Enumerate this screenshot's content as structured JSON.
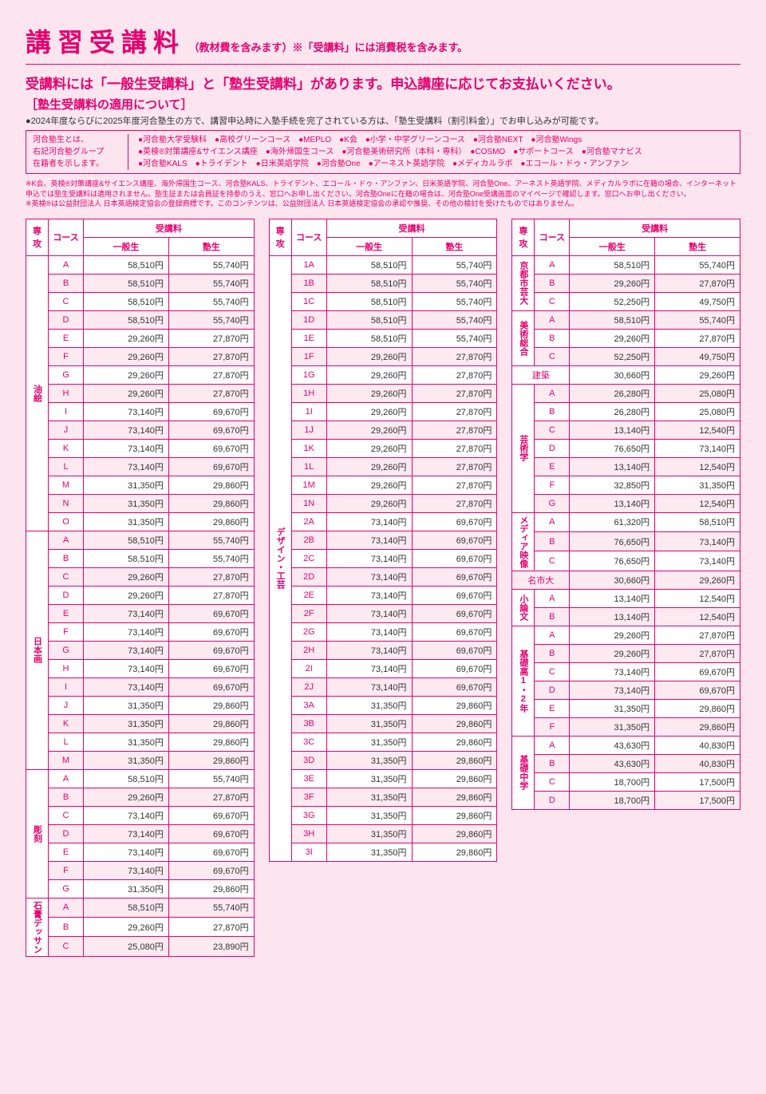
{
  "header": {
    "title": "講習受講料",
    "subtitle": "（教材費を含みます）※「受講料」には消費税を含みます。"
  },
  "intro": {
    "line1": "受講料には「一般生受講料」と「塾生受講料」があります。申込講座に応じてお支払いください。",
    "line2": "［塾生受講料の適用について］",
    "note": "●2024年度ならびに2025年度河合塾生の方で、講習申込時に入塾手続を完了されている方は、「塾生受講料（割引料金）」でお申し込みが可能です。"
  },
  "infoBox": {
    "left": "河合塾生とは、\n右記河合塾グループ\n在籍者を示します。",
    "right1": "●河合塾大学受験科　●高校グリーンコース　●MEPLO　●K会　●小学・中学グリーンコース　●河合塾NEXT　●河合塾Wings",
    "right2": "●英検®対策講座&サイエンス講座　●海外帰国生コース　●河合塾美術研究所（本科・専科）　●COSMO　●サポートコース　●河合塾マナビス",
    "right3": "●河合塾KALS　●トライデント　●日米英語学院　●河合塾One　●アーネスト英語学院　●メディカルラボ　●エコール・ドゥ・アンファン"
  },
  "finePrint": "※K会、英検®対策講座&サイエンス講座、海外帰国生コース、河合塾KALS、トライデント、エコール・ドゥ・アンファン、日米英語学院、河合塾One、アーネスト英語学院、メディカルラボに在籍の場合、インターネット申込では塾生受講料は適用されません。塾生証または会員証を持参のうえ、窓口へお申し出ください。河合塾Oneに在籍の場合は、河合塾One受講画面のマイページで確認します。窓口へお申し出ください。\n※英検®は公益財団法人 日本英語検定協会の登録商標です。このコンテンツは、公益財団法人 日本英語検定協会の承認や推奨、その他の検討を受けたものではありません。",
  "tableHead": {
    "major": "専攻",
    "course": "コース",
    "fee": "受講料",
    "gen": "一般生",
    "stu": "塾生"
  },
  "col1": [
    {
      "major": "油絵",
      "rows": [
        [
          "A",
          "58,510円",
          "55,740円",
          0
        ],
        [
          "B",
          "58,510円",
          "55,740円",
          1
        ],
        [
          "C",
          "58,510円",
          "55,740円",
          0
        ],
        [
          "D",
          "58,510円",
          "55,740円",
          1
        ],
        [
          "E",
          "29,260円",
          "27,870円",
          0
        ],
        [
          "F",
          "29,260円",
          "27,870円",
          1
        ],
        [
          "G",
          "29,260円",
          "27,870円",
          0
        ],
        [
          "H",
          "29,260円",
          "27,870円",
          1
        ],
        [
          "I",
          "73,140円",
          "69,670円",
          0
        ],
        [
          "J",
          "73,140円",
          "69,670円",
          1
        ],
        [
          "K",
          "73,140円",
          "69,670円",
          0
        ],
        [
          "L",
          "73,140円",
          "69,670円",
          1
        ],
        [
          "M",
          "31,350円",
          "29,860円",
          0
        ],
        [
          "N",
          "31,350円",
          "29,860円",
          1
        ],
        [
          "O",
          "31,350円",
          "29,860円",
          0
        ]
      ]
    },
    {
      "major": "日本画",
      "rows": [
        [
          "A",
          "58,510円",
          "55,740円",
          1
        ],
        [
          "B",
          "58,510円",
          "55,740円",
          0
        ],
        [
          "C",
          "29,260円",
          "27,870円",
          1
        ],
        [
          "D",
          "29,260円",
          "27,870円",
          0
        ],
        [
          "E",
          "73,140円",
          "69,670円",
          1
        ],
        [
          "F",
          "73,140円",
          "69,670円",
          0
        ],
        [
          "G",
          "73,140円",
          "69,670円",
          1
        ],
        [
          "H",
          "73,140円",
          "69,670円",
          0
        ],
        [
          "I",
          "73,140円",
          "69,670円",
          1
        ],
        [
          "J",
          "31,350円",
          "29,860円",
          0
        ],
        [
          "K",
          "31,350円",
          "29,860円",
          1
        ],
        [
          "L",
          "31,350円",
          "29,860円",
          0
        ],
        [
          "M",
          "31,350円",
          "29,860円",
          1
        ]
      ]
    },
    {
      "major": "彫刻",
      "rows": [
        [
          "A",
          "58,510円",
          "55,740円",
          0
        ],
        [
          "B",
          "29,260円",
          "27,870円",
          1
        ],
        [
          "C",
          "73,140円",
          "69,670円",
          0
        ],
        [
          "D",
          "73,140円",
          "69,670円",
          1
        ],
        [
          "E",
          "73,140円",
          "69,670円",
          0
        ],
        [
          "F",
          "73,140円",
          "69,670円",
          1
        ],
        [
          "G",
          "31,350円",
          "29,860円",
          0
        ]
      ]
    },
    {
      "major": "石膏デッサン",
      "rows": [
        [
          "A",
          "58,510円",
          "55,740円",
          1
        ],
        [
          "B",
          "29,260円",
          "27,870円",
          0
        ],
        [
          "C",
          "25,080円",
          "23,890円",
          1
        ]
      ]
    }
  ],
  "col2": [
    {
      "major": "デザイン・工芸",
      "rows": [
        [
          "1A",
          "58,510円",
          "55,740円",
          0
        ],
        [
          "1B",
          "58,510円",
          "55,740円",
          1
        ],
        [
          "1C",
          "58,510円",
          "55,740円",
          0
        ],
        [
          "1D",
          "58,510円",
          "55,740円",
          1
        ],
        [
          "1E",
          "58,510円",
          "55,740円",
          0
        ],
        [
          "1F",
          "29,260円",
          "27,870円",
          1
        ],
        [
          "1G",
          "29,260円",
          "27,870円",
          0
        ],
        [
          "1H",
          "29,260円",
          "27,870円",
          1
        ],
        [
          "1I",
          "29,260円",
          "27,870円",
          0
        ],
        [
          "1J",
          "29,260円",
          "27,870円",
          1
        ],
        [
          "1K",
          "29,260円",
          "27,870円",
          0
        ],
        [
          "1L",
          "29,260円",
          "27,870円",
          1
        ],
        [
          "1M",
          "29,260円",
          "27,870円",
          0
        ],
        [
          "1N",
          "29,260円",
          "27,870円",
          1
        ],
        [
          "2A",
          "73,140円",
          "69,670円",
          0
        ],
        [
          "2B",
          "73,140円",
          "69,670円",
          1
        ],
        [
          "2C",
          "73,140円",
          "69,670円",
          0
        ],
        [
          "2D",
          "73,140円",
          "69,670円",
          1
        ],
        [
          "2E",
          "73,140円",
          "69,670円",
          0
        ],
        [
          "2F",
          "73,140円",
          "69,670円",
          1
        ],
        [
          "2G",
          "73,140円",
          "69,670円",
          0
        ],
        [
          "2H",
          "73,140円",
          "69,670円",
          1
        ],
        [
          "2I",
          "73,140円",
          "69,670円",
          0
        ],
        [
          "2J",
          "73,140円",
          "69,670円",
          1
        ],
        [
          "3A",
          "31,350円",
          "29,860円",
          0
        ],
        [
          "3B",
          "31,350円",
          "29,860円",
          1
        ],
        [
          "3C",
          "31,350円",
          "29,860円",
          0
        ],
        [
          "3D",
          "31,350円",
          "29,860円",
          1
        ],
        [
          "3E",
          "31,350円",
          "29,860円",
          0
        ],
        [
          "3F",
          "31,350円",
          "29,860円",
          1
        ],
        [
          "3G",
          "31,350円",
          "29,860円",
          0
        ],
        [
          "3H",
          "31,350円",
          "29,860円",
          1
        ],
        [
          "3I",
          "31,350円",
          "29,860円",
          0
        ]
      ]
    }
  ],
  "col3": [
    {
      "major": "京都市芸大",
      "rows": [
        [
          "A",
          "58,510円",
          "55,740円",
          0
        ],
        [
          "B",
          "29,260円",
          "27,870円",
          1
        ],
        [
          "C",
          "52,250円",
          "49,750円",
          0
        ]
      ]
    },
    {
      "major": "美術総合",
      "rows": [
        [
          "A",
          "58,510円",
          "55,740円",
          1
        ],
        [
          "B",
          "29,260円",
          "27,870円",
          0
        ],
        [
          "C",
          "52,250円",
          "49,750円",
          1
        ]
      ]
    },
    {
      "major": "建築",
      "span": true,
      "rows": [
        [
          "",
          "30,660円",
          "29,260円",
          0
        ]
      ]
    },
    {
      "major": "芸術学",
      "rows": [
        [
          "A",
          "26,280円",
          "25,080円",
          1
        ],
        [
          "B",
          "26,280円",
          "25,080円",
          0
        ],
        [
          "C",
          "13,140円",
          "12,540円",
          1
        ],
        [
          "D",
          "76,650円",
          "73,140円",
          0
        ],
        [
          "E",
          "13,140円",
          "12,540円",
          1
        ],
        [
          "F",
          "32,850円",
          "31,350円",
          0
        ],
        [
          "G",
          "13,140円",
          "12,540円",
          1
        ]
      ]
    },
    {
      "major": "メディア映像",
      "rows": [
        [
          "A",
          "61,320円",
          "58,510円",
          0
        ],
        [
          "B",
          "76,650円",
          "73,140円",
          1
        ],
        [
          "C",
          "76,650円",
          "73,140円",
          0
        ]
      ]
    },
    {
      "major": "名市大",
      "span": true,
      "rows": [
        [
          "",
          "30,660円",
          "29,260円",
          1
        ]
      ]
    },
    {
      "major": "小論文",
      "rows": [
        [
          "A",
          "13,140円",
          "12,540円",
          0
        ],
        [
          "B",
          "13,140円",
          "12,540円",
          1
        ]
      ]
    },
    {
      "major": "基礎高1・2年",
      "rows": [
        [
          "A",
          "29,260円",
          "27,870円",
          0
        ],
        [
          "B",
          "29,260円",
          "27,870円",
          1
        ],
        [
          "C",
          "73,140円",
          "69,670円",
          0
        ],
        [
          "D",
          "73,140円",
          "69,670円",
          1
        ],
        [
          "E",
          "31,350円",
          "29,860円",
          0
        ],
        [
          "F",
          "31,350円",
          "29,860円",
          1
        ]
      ]
    },
    {
      "major": "基礎中学",
      "rows": [
        [
          "A",
          "43,630円",
          "40,830円",
          0
        ],
        [
          "B",
          "43,630円",
          "40,830円",
          1
        ],
        [
          "C",
          "18,700円",
          "17,500円",
          0
        ],
        [
          "D",
          "18,700円",
          "17,500円",
          1
        ]
      ]
    }
  ]
}
